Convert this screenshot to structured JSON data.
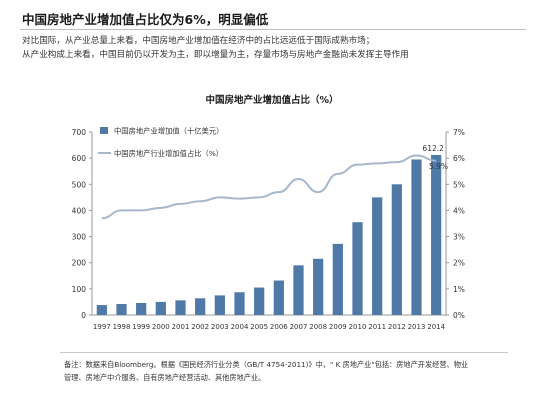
{
  "header": {
    "headline": "中国房地产业增加值占比仅为6%，明显偏低",
    "sub_line1": "对比国际，从产业总量上来看，中国房地产业增加值在经济中的占比远远低于国际成熟市场；",
    "sub_line2": "从产业构成上来看，中国目前仍以开发为主，即以增量为主，存量市场与房地产金融尚未发挥主导作用"
  },
  "chart_data": {
    "type": "bar",
    "title": "中国房地产业增加值占比（%）",
    "categories": [
      "1997",
      "1998",
      "1999",
      "2000",
      "2001",
      "2002",
      "2003",
      "2004",
      "2005",
      "2006",
      "2007",
      "2008",
      "2009",
      "2010",
      "2011",
      "2012",
      "2013",
      "2014"
    ],
    "series": [
      {
        "name": "中国房地产业增加值（十亿美元）",
        "type": "bar",
        "axis": "left",
        "color": "#4f7aa8",
        "values": [
          38,
          42,
          46,
          50,
          56,
          64,
          75,
          87,
          105,
          132,
          190,
          215,
          272,
          355,
          450,
          500,
          595,
          612.2
        ]
      },
      {
        "name": "中国房地产行业增加值占比（%）",
        "type": "line",
        "axis": "right",
        "color": "#a6b7cb",
        "values": [
          3.7,
          4.0,
          4.0,
          4.1,
          4.25,
          4.35,
          4.5,
          4.45,
          4.5,
          4.7,
          5.2,
          4.7,
          5.4,
          5.75,
          5.8,
          5.85,
          6.1,
          5.9
        ]
      }
    ],
    "ylim_left": [
      0,
      700
    ],
    "yticks_left": [
      "0",
      "100",
      "200",
      "300",
      "400",
      "500",
      "600",
      "700"
    ],
    "ylim_right": [
      0,
      7
    ],
    "yticks_right": [
      "0%",
      "1%",
      "2%",
      "3%",
      "4%",
      "5%",
      "6%",
      "7%"
    ],
    "annotations": [
      "612.2",
      "5.9%"
    ],
    "legend_position": "top-left",
    "grid": false
  },
  "footnote": {
    "line1": "备注：数据来自Bloomberg。根据《国民经济行业分类（GB/T 4754-2011)》中，\" K 房地产业\"包括：房地产开发经营、物业",
    "line2": "管理、房地产中介服务、自有房地产经营活动、其他房地产业。"
  }
}
